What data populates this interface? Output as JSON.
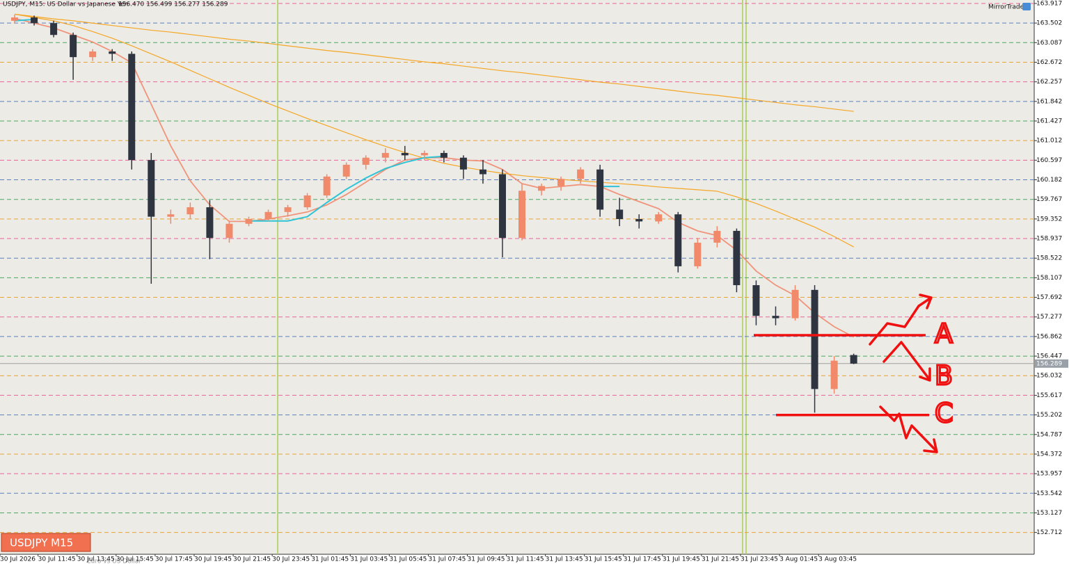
{
  "chart_data": {
    "type": "candlestick",
    "title": "USDJPY, M15:  US Dollar vs Japanese Yen",
    "quote": "156.470 156.499 156.277 156.289",
    "brand": "MirrorTrader",
    "badge": "USDJPY M15",
    "tab": "Euro vs US Dollar",
    "bull_color": "#f08a6a",
    "bear_color": "#2f3540",
    "ylim": [
      152.25,
      163.99
    ],
    "yticks": [
      163.917,
      163.502,
      163.087,
      162.672,
      162.257,
      161.842,
      161.427,
      161.012,
      160.597,
      160.182,
      159.767,
      159.352,
      158.937,
      158.522,
      158.107,
      157.692,
      157.277,
      156.862,
      156.447,
      156.032,
      155.617,
      155.202,
      154.787,
      154.372,
      153.957,
      153.542,
      153.127,
      152.712
    ],
    "grid_colors": [
      "#e6649a",
      "#5a7fc0",
      "#4aa860",
      "#e8a23a"
    ],
    "xlim": [
      -0.75,
      52.25
    ],
    "xticks": [
      {
        "value": -0.75,
        "label": "30 Jul 2026"
      },
      {
        "value": 1.2,
        "label": "30 Jul 11:45"
      },
      {
        "value": 3.2,
        "label": "30 Jul 13:45"
      },
      {
        "value": 5.2,
        "label": "30 Jul 15:45"
      },
      {
        "value": 7.2,
        "label": "30 Jul 17:45"
      },
      {
        "value": 9.2,
        "label": "30 Jul 19:45"
      },
      {
        "value": 11.2,
        "label": "30 Jul 21:45"
      },
      {
        "value": 13.2,
        "label": "30 Jul 23:45"
      },
      {
        "value": 15.2,
        "label": "31 Jul 01:45"
      },
      {
        "value": 17.2,
        "label": "31 Jul 03:45"
      },
      {
        "value": 19.2,
        "label": "31 Jul 05:45"
      },
      {
        "value": 21.2,
        "label": "31 Jul 07:45"
      },
      {
        "value": 23.2,
        "label": "31 Jul 09:45"
      },
      {
        "value": 25.2,
        "label": "31 Jul 11:45"
      },
      {
        "value": 27.2,
        "label": "31 Jul 13:45"
      },
      {
        "value": 29.2,
        "label": "31 Jul 15:45"
      },
      {
        "value": 31.2,
        "label": "31 Jul 17:45"
      },
      {
        "value": 33.2,
        "label": "31 Jul 19:45"
      },
      {
        "value": 35.2,
        "label": "31 Jul 21:45"
      },
      {
        "value": 37.2,
        "label": "31 Jul 23:45"
      },
      {
        "value": 39.2,
        "label": "3 Aug 01:45"
      },
      {
        "value": 41.2,
        "label": "3 Aug 03:45"
      }
    ],
    "current_price": {
      "value": 156.289,
      "label": "156.289"
    },
    "candles": [
      {
        "o": 163.55,
        "h": 163.68,
        "l": 163.5,
        "c": 163.62
      },
      {
        "o": 163.62,
        "h": 163.66,
        "l": 163.45,
        "c": 163.5
      },
      {
        "o": 163.5,
        "h": 163.55,
        "l": 163.2,
        "c": 163.25
      },
      {
        "o": 163.25,
        "h": 163.3,
        "l": 162.3,
        "c": 162.78
      },
      {
        "o": 162.78,
        "h": 162.95,
        "l": 162.7,
        "c": 162.9
      },
      {
        "o": 162.9,
        "h": 162.95,
        "l": 162.7,
        "c": 162.85
      },
      {
        "o": 162.85,
        "h": 162.9,
        "l": 160.4,
        "c": 160.6
      },
      {
        "o": 160.6,
        "h": 160.75,
        "l": 157.98,
        "c": 159.4
      },
      {
        "o": 159.4,
        "h": 159.55,
        "l": 159.25,
        "c": 159.45
      },
      {
        "o": 159.45,
        "h": 159.7,
        "l": 159.35,
        "c": 159.6
      },
      {
        "o": 159.6,
        "h": 159.75,
        "l": 158.5,
        "c": 158.95
      },
      {
        "o": 158.95,
        "h": 159.3,
        "l": 158.85,
        "c": 159.25
      },
      {
        "o": 159.25,
        "h": 159.4,
        "l": 159.2,
        "c": 159.35
      },
      {
        "o": 159.35,
        "h": 159.55,
        "l": 159.3,
        "c": 159.5
      },
      {
        "o": 159.5,
        "h": 159.65,
        "l": 159.4,
        "c": 159.6
      },
      {
        "o": 159.6,
        "h": 159.9,
        "l": 159.55,
        "c": 159.85
      },
      {
        "o": 159.85,
        "h": 160.3,
        "l": 159.8,
        "c": 160.25
      },
      {
        "o": 160.25,
        "h": 160.55,
        "l": 160.2,
        "c": 160.5
      },
      {
        "o": 160.5,
        "h": 160.7,
        "l": 160.4,
        "c": 160.65
      },
      {
        "o": 160.65,
        "h": 160.85,
        "l": 160.55,
        "c": 160.75
      },
      {
        "o": 160.75,
        "h": 160.9,
        "l": 160.6,
        "c": 160.7
      },
      {
        "o": 160.7,
        "h": 160.8,
        "l": 160.6,
        "c": 160.75
      },
      {
        "o": 160.75,
        "h": 160.8,
        "l": 160.55,
        "c": 160.65
      },
      {
        "o": 160.65,
        "h": 160.7,
        "l": 160.2,
        "c": 160.4
      },
      {
        "o": 160.4,
        "h": 160.6,
        "l": 160.1,
        "c": 160.3
      },
      {
        "o": 160.3,
        "h": 160.4,
        "l": 158.54,
        "c": 158.95
      },
      {
        "o": 158.95,
        "h": 160.1,
        "l": 158.9,
        "c": 159.95
      },
      {
        "o": 159.95,
        "h": 160.1,
        "l": 159.85,
        "c": 160.05
      },
      {
        "o": 160.05,
        "h": 160.25,
        "l": 159.95,
        "c": 160.2
      },
      {
        "o": 160.2,
        "h": 160.45,
        "l": 160.1,
        "c": 160.4
      },
      {
        "o": 160.4,
        "h": 160.5,
        "l": 159.4,
        "c": 159.55
      },
      {
        "o": 159.55,
        "h": 159.8,
        "l": 159.2,
        "c": 159.35
      },
      {
        "o": 159.35,
        "h": 159.45,
        "l": 159.15,
        "c": 159.3
      },
      {
        "o": 159.3,
        "h": 159.5,
        "l": 159.25,
        "c": 159.45
      },
      {
        "o": 159.45,
        "h": 159.5,
        "l": 158.22,
        "c": 158.35
      },
      {
        "o": 158.35,
        "h": 158.95,
        "l": 158.3,
        "c": 158.85
      },
      {
        "o": 158.85,
        "h": 159.2,
        "l": 158.75,
        "c": 159.1
      },
      {
        "o": 159.1,
        "h": 159.15,
        "l": 157.8,
        "c": 157.95
      },
      {
        "o": 157.95,
        "h": 158.05,
        "l": 157.1,
        "c": 157.3
      },
      {
        "o": 157.3,
        "h": 157.5,
        "l": 157.1,
        "c": 157.25
      },
      {
        "o": 157.25,
        "h": 157.95,
        "l": 157.2,
        "c": 157.85
      },
      {
        "o": 157.85,
        "h": 157.95,
        "l": 155.25,
        "c": 155.75
      },
      {
        "o": 155.75,
        "h": 156.45,
        "l": 155.65,
        "c": 156.35
      },
      {
        "o": 156.47,
        "h": 156.499,
        "l": 156.277,
        "c": 156.289
      }
    ],
    "series": [
      {
        "color": "#f0937a",
        "width": 1.8,
        "values": [
          163.6,
          163.5,
          163.4,
          163.25,
          163.1,
          162.9,
          162.66,
          161.78,
          160.9,
          160.16,
          159.65,
          159.3,
          159.3,
          159.35,
          159.42,
          159.5,
          159.65,
          159.87,
          160.13,
          160.4,
          160.6,
          160.65,
          160.65,
          160.6,
          160.58,
          160.4,
          160.1,
          160.0,
          160.04,
          160.08,
          160.04,
          159.87,
          159.72,
          159.57,
          159.28,
          159.1,
          159.0,
          158.69,
          158.25,
          157.95,
          157.73,
          157.36,
          157.07,
          156.85
        ]
      },
      {
        "color": "#f5a623",
        "width": 1.2,
        "values": [
          163.69,
          163.64,
          163.59,
          163.55,
          163.5,
          163.45,
          163.4,
          163.35,
          163.31,
          163.26,
          163.21,
          163.16,
          163.12,
          163.07,
          163.02,
          162.97,
          162.92,
          162.88,
          162.83,
          162.78,
          162.73,
          162.68,
          162.64,
          162.59,
          162.54,
          162.49,
          162.45,
          162.4,
          162.35,
          162.3,
          162.25,
          162.21,
          162.16,
          162.11,
          162.06,
          162.01,
          161.97,
          161.92,
          161.87,
          161.82,
          161.77,
          161.73,
          161.68,
          161.63
        ]
      },
      {
        "color": "#f5a623",
        "width": 1.2,
        "values": [
          163.69,
          163.62,
          163.55,
          163.45,
          163.32,
          163.18,
          163.02,
          162.85,
          162.68,
          162.5,
          162.32,
          162.14,
          161.97,
          161.8,
          161.64,
          161.48,
          161.33,
          161.18,
          161.03,
          160.89,
          160.76,
          160.64,
          160.53,
          160.45,
          160.38,
          160.32,
          160.27,
          160.23,
          160.19,
          160.16,
          160.13,
          160.1,
          160.07,
          160.03,
          160.0,
          159.97,
          159.94,
          159.82,
          159.68,
          159.52,
          159.35,
          159.18,
          158.98,
          158.76
        ]
      },
      {
        "color": "#2ec4d6",
        "width": 2,
        "values": [
          163.55,
          163.58,
          null,
          null,
          null,
          null,
          null,
          null,
          null,
          null,
          null,
          null,
          159.31,
          159.31,
          159.31,
          159.4,
          159.7,
          159.98,
          160.22,
          160.42,
          160.55,
          160.65,
          160.68,
          null,
          null,
          null,
          null,
          null,
          null,
          null,
          160.04,
          160.04,
          null,
          null,
          null,
          null,
          null,
          null,
          null,
          null,
          null,
          null,
          null,
          null
        ]
      }
    ],
    "annotations": [
      {
        "label": "A",
        "price": 156.89
      },
      {
        "label": "B",
        "price": 156.0
      },
      {
        "label": "C",
        "price": 155.2
      }
    ]
  }
}
